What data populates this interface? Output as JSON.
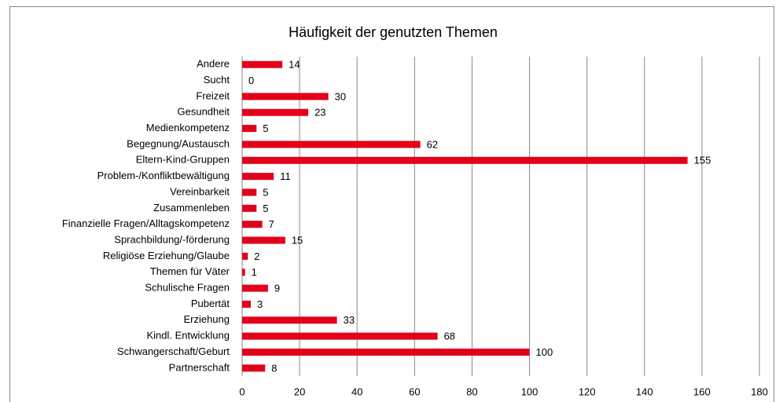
{
  "chart_data": {
    "type": "bar",
    "orientation": "horizontal",
    "title": "Häufigkeit der genutzten Themen",
    "categories": [
      "Andere",
      "Sucht",
      "Freizeit",
      "Gesundheit",
      "Medienkompetenz",
      "Begegnung/Austausch",
      "Eltern-Kind-Gruppen",
      "Problem-/Konfliktbewältigung",
      "Vereinbarkeit",
      "Zusammenleben",
      "Finanzielle Fragen/Alltagskompetenz",
      "Sprachbildung/-förderung",
      "Religiöse Erziehung/Glaube",
      "Themen für Väter",
      "Schulische Fragen",
      "Pubertät",
      "Erziehung",
      "Kindl. Entwicklung",
      "Schwangerschaft/Geburt",
      "Partnerschaft"
    ],
    "values": [
      14,
      0,
      30,
      23,
      5,
      62,
      155,
      11,
      5,
      5,
      7,
      15,
      2,
      1,
      9,
      3,
      33,
      68,
      100,
      8
    ],
    "color": "#e2001a",
    "xlim": [
      0,
      180
    ],
    "xticks": [
      0,
      20,
      40,
      60,
      80,
      100,
      120,
      140,
      160,
      180
    ],
    "grid": true
  }
}
